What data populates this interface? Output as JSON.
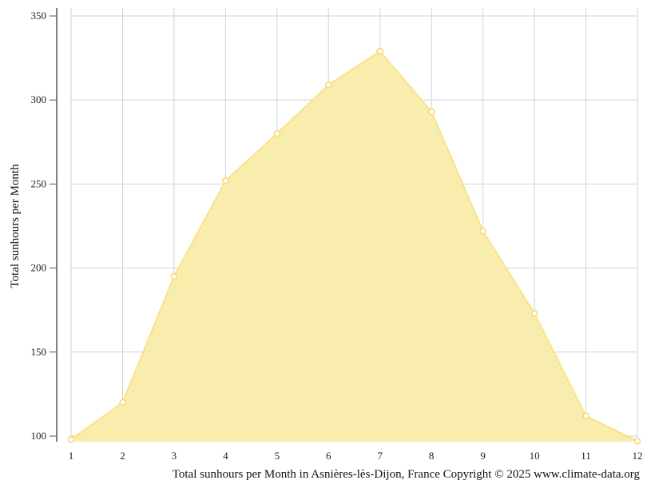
{
  "chart_data": {
    "type": "area",
    "x": [
      1,
      2,
      3,
      4,
      5,
      6,
      7,
      8,
      9,
      10,
      11,
      12
    ],
    "series": [
      {
        "name": "",
        "values": [
          98,
          120,
          195,
          252,
          280,
          309,
          329,
          293,
          222,
          173,
          112,
          97
        ]
      }
    ],
    "ylabel": "Total sunhours per Month",
    "xlabel": "",
    "caption": "Total sunhours per Month in Asnières-lès-Dijon, France Copyright © 2025 www.climate-data.org",
    "ylim": [
      100,
      350
    ],
    "xlim": [
      1,
      12
    ],
    "yticks": [
      100,
      150,
      200,
      250,
      300,
      350
    ],
    "xticks": [
      1,
      2,
      3,
      4,
      5,
      6,
      7,
      8,
      9,
      10,
      11,
      12
    ],
    "grid": true,
    "colors": {
      "fill": "#f9eca9",
      "line": "#f8e38a",
      "marker_fill": "#ffffff",
      "marker_stroke": "#f5d86a",
      "grid": "#d2d2d2",
      "axis": "#555555"
    }
  }
}
